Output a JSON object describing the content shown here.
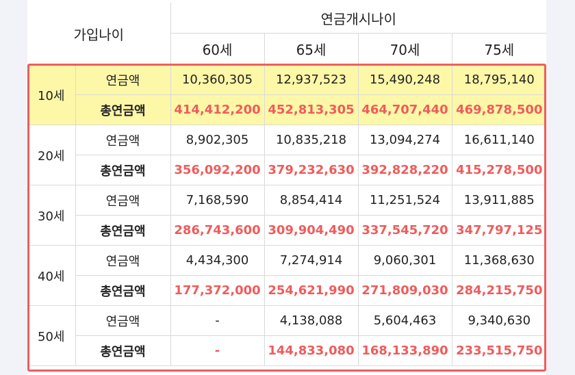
{
  "header": {
    "join_age": "가입나이",
    "start_age": "연금개시나이",
    "ages": [
      "60세",
      "65세",
      "70세",
      "75세"
    ]
  },
  "rows": [
    {
      "age": "10세",
      "annual_label": "연금액",
      "total_label": "총연금액",
      "annual": [
        "10,360,305",
        "12,937,523",
        "15,490,248",
        "18,795,140"
      ],
      "total": [
        "414,412,200",
        "452,813,305",
        "464,707,440",
        "469,878,500"
      ]
    },
    {
      "age": "20세",
      "annual_label": "연금액",
      "total_label": "총연금액",
      "annual": [
        "8,902,305",
        "10,835,218",
        "13,094,274",
        "16,611,140"
      ],
      "total": [
        "356,092,200",
        "379,232,630",
        "392,828,220",
        "415,278,500"
      ]
    },
    {
      "age": "30세",
      "annual_label": "연금액",
      "total_label": "총연금액",
      "annual": [
        "7,168,590",
        "8,854,414",
        "11,251,524",
        "13,911,885"
      ],
      "total": [
        "286,743,600",
        "309,904,490",
        "337,545,720",
        "347,797,125"
      ]
    },
    {
      "age": "40세",
      "annual_label": "연금액",
      "total_label": "총연금액",
      "annual": [
        "4,434,300",
        "7,274,914",
        "9,060,301",
        "11,368,630"
      ],
      "total": [
        "177,372,000",
        "254,621,990",
        "271,809,030",
        "284,215,750"
      ]
    },
    {
      "age": "50세",
      "annual_label": "연금액",
      "total_label": "총연금액",
      "annual": [
        "-",
        "4,138,088",
        "5,604,463",
        "9,340,630"
      ],
      "total": [
        "-",
        "144,833,080",
        "168,133,890",
        "233,515,750"
      ]
    }
  ],
  "colors": {
    "highlight": "#fdf7a8",
    "total_text": "#f05b5b",
    "frame": "#ee5d5d"
  }
}
